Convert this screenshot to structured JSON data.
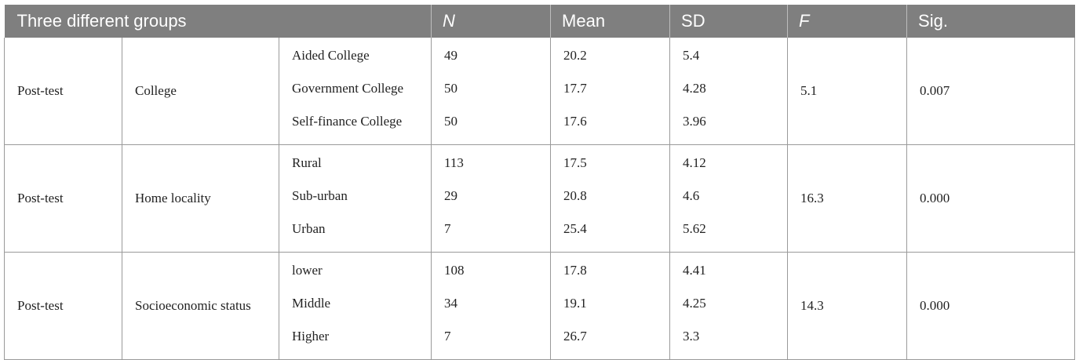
{
  "table": {
    "headers": [
      {
        "label": "Three different groups",
        "italic": false
      },
      {
        "label": "N",
        "italic": true
      },
      {
        "label": "Mean",
        "italic": false
      },
      {
        "label": "SD",
        "italic": false
      },
      {
        "label": "F",
        "italic": true
      },
      {
        "label": "Sig.",
        "italic": false
      }
    ],
    "groups": [
      {
        "test": "Post-test",
        "variable": "College",
        "levels": [
          "Aided College",
          "Government College",
          "Self-finance College"
        ],
        "n": [
          "49",
          "50",
          "50"
        ],
        "mean": [
          "20.2",
          "17.7",
          "17.6"
        ],
        "sd": [
          "5.4",
          "4.28",
          "3.96"
        ],
        "f": "5.1",
        "sig": "0.007"
      },
      {
        "test": "Post-test",
        "variable": "Home locality",
        "levels": [
          "Rural",
          "Sub-urban",
          "Urban"
        ],
        "n": [
          "113",
          "29",
          "7"
        ],
        "mean": [
          "17.5",
          "20.8",
          "25.4"
        ],
        "sd": [
          "4.12",
          "4.6",
          "5.62"
        ],
        "f": "16.3",
        "sig": "0.000"
      },
      {
        "test": "Post-test",
        "variable": "Socioeconomic status",
        "levels": [
          "lower",
          "Middle",
          "Higher"
        ],
        "n": [
          "108",
          "34",
          "7"
        ],
        "mean": [
          "17.8",
          "19.1",
          "26.7"
        ],
        "sd": [
          "4.41",
          "4.25",
          "3.3"
        ],
        "f": "14.3",
        "sig": "0.000"
      }
    ],
    "colors": {
      "header_bg": "#7f7f7f",
      "header_text": "#ffffff",
      "rule": "#9a9a9a"
    }
  }
}
